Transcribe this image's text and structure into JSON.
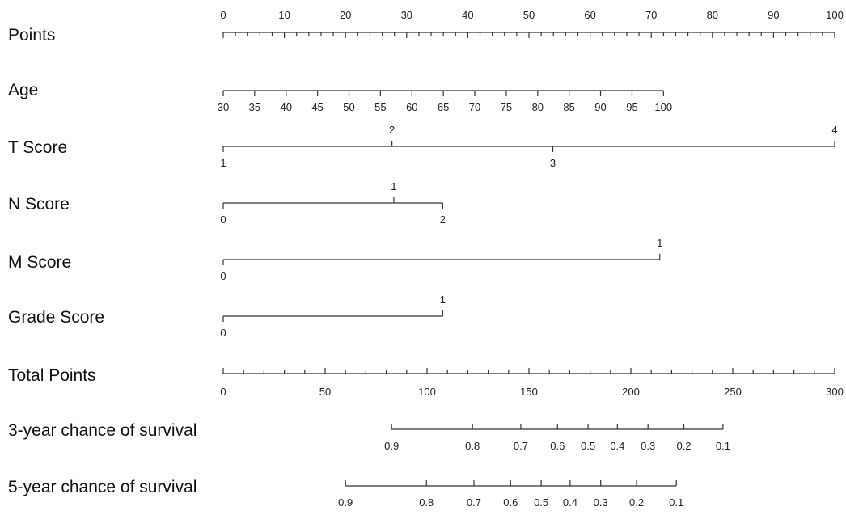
{
  "chart_data": {
    "type": "nomogram",
    "title": "",
    "points_scale": {
      "label": "Points",
      "range": [
        0,
        100
      ],
      "major_ticks": [
        0,
        10,
        20,
        30,
        40,
        50,
        60,
        70,
        80,
        90,
        100
      ],
      "minor_step": 2
    },
    "predictors": [
      {
        "label": "Age",
        "ticks": [
          {
            "value": "30",
            "points": 0
          },
          {
            "value": "35",
            "points": 5.14
          },
          {
            "value": "40",
            "points": 10.29
          },
          {
            "value": "45",
            "points": 15.43
          },
          {
            "value": "50",
            "points": 20.57
          },
          {
            "value": "55",
            "points": 25.71
          },
          {
            "value": "60",
            "points": 30.86
          },
          {
            "value": "65",
            "points": 36.0
          },
          {
            "value": "70",
            "points": 41.14
          },
          {
            "value": "75",
            "points": 46.29
          },
          {
            "value": "80",
            "points": 51.43
          },
          {
            "value": "85",
            "points": 56.57
          },
          {
            "value": "90",
            "points": 61.71
          },
          {
            "value": "95",
            "points": 66.86
          },
          {
            "value": "100",
            "points": 72.0
          }
        ]
      },
      {
        "label": "T Score",
        "ticks": [
          {
            "value": "1",
            "points": 0,
            "side": "below"
          },
          {
            "value": "2",
            "points": 27.6,
            "side": "above"
          },
          {
            "value": "3",
            "points": 53.9,
            "side": "below"
          },
          {
            "value": "4",
            "points": 100,
            "side": "above"
          }
        ]
      },
      {
        "label": "N Score",
        "ticks": [
          {
            "value": "0",
            "points": 0,
            "side": "below"
          },
          {
            "value": "1",
            "points": 27.9,
            "side": "above"
          },
          {
            "value": "2",
            "points": 35.9,
            "side": "below"
          }
        ]
      },
      {
        "label": "M Score",
        "ticks": [
          {
            "value": "0",
            "points": 0,
            "side": "below"
          },
          {
            "value": "1",
            "points": 71.4,
            "side": "above"
          }
        ]
      },
      {
        "label": "Grade Score",
        "ticks": [
          {
            "value": "0",
            "points": 0,
            "side": "below"
          },
          {
            "value": "1",
            "points": 35.9,
            "side": "above"
          }
        ]
      }
    ],
    "total_points_scale": {
      "label": "Total Points",
      "range": [
        0,
        300
      ],
      "major_ticks": [
        0,
        50,
        100,
        150,
        200,
        250,
        300
      ],
      "minor_step": 10
    },
    "outcomes": [
      {
        "label": "3-year chance of survival",
        "ticks": [
          {
            "value": "0.9",
            "total_points": 82.6
          },
          {
            "value": "0.8",
            "total_points": 122.3
          },
          {
            "value": "0.7",
            "total_points": 146.0
          },
          {
            "value": "0.6",
            "total_points": 164.0
          },
          {
            "value": "0.5",
            "total_points": 179.0
          },
          {
            "value": "0.4",
            "total_points": 193.4
          },
          {
            "value": "0.3",
            "total_points": 208.4
          },
          {
            "value": "0.2",
            "total_points": 226.0
          },
          {
            "value": "0.1",
            "total_points": 245.2
          }
        ]
      },
      {
        "label": "5-year chance of survival",
        "ticks": [
          {
            "value": "0.9",
            "total_points": 60.0
          },
          {
            "value": "0.8",
            "total_points": 99.7
          },
          {
            "value": "0.7",
            "total_points": 123.0
          },
          {
            "value": "0.6",
            "total_points": 141.0
          },
          {
            "value": "0.5",
            "total_points": 156.0
          },
          {
            "value": "0.4",
            "total_points": 170.2
          },
          {
            "value": "0.3",
            "total_points": 185.2
          },
          {
            "value": "0.2",
            "total_points": 202.8
          },
          {
            "value": "0.1",
            "total_points": 222.3
          }
        ]
      }
    ]
  }
}
